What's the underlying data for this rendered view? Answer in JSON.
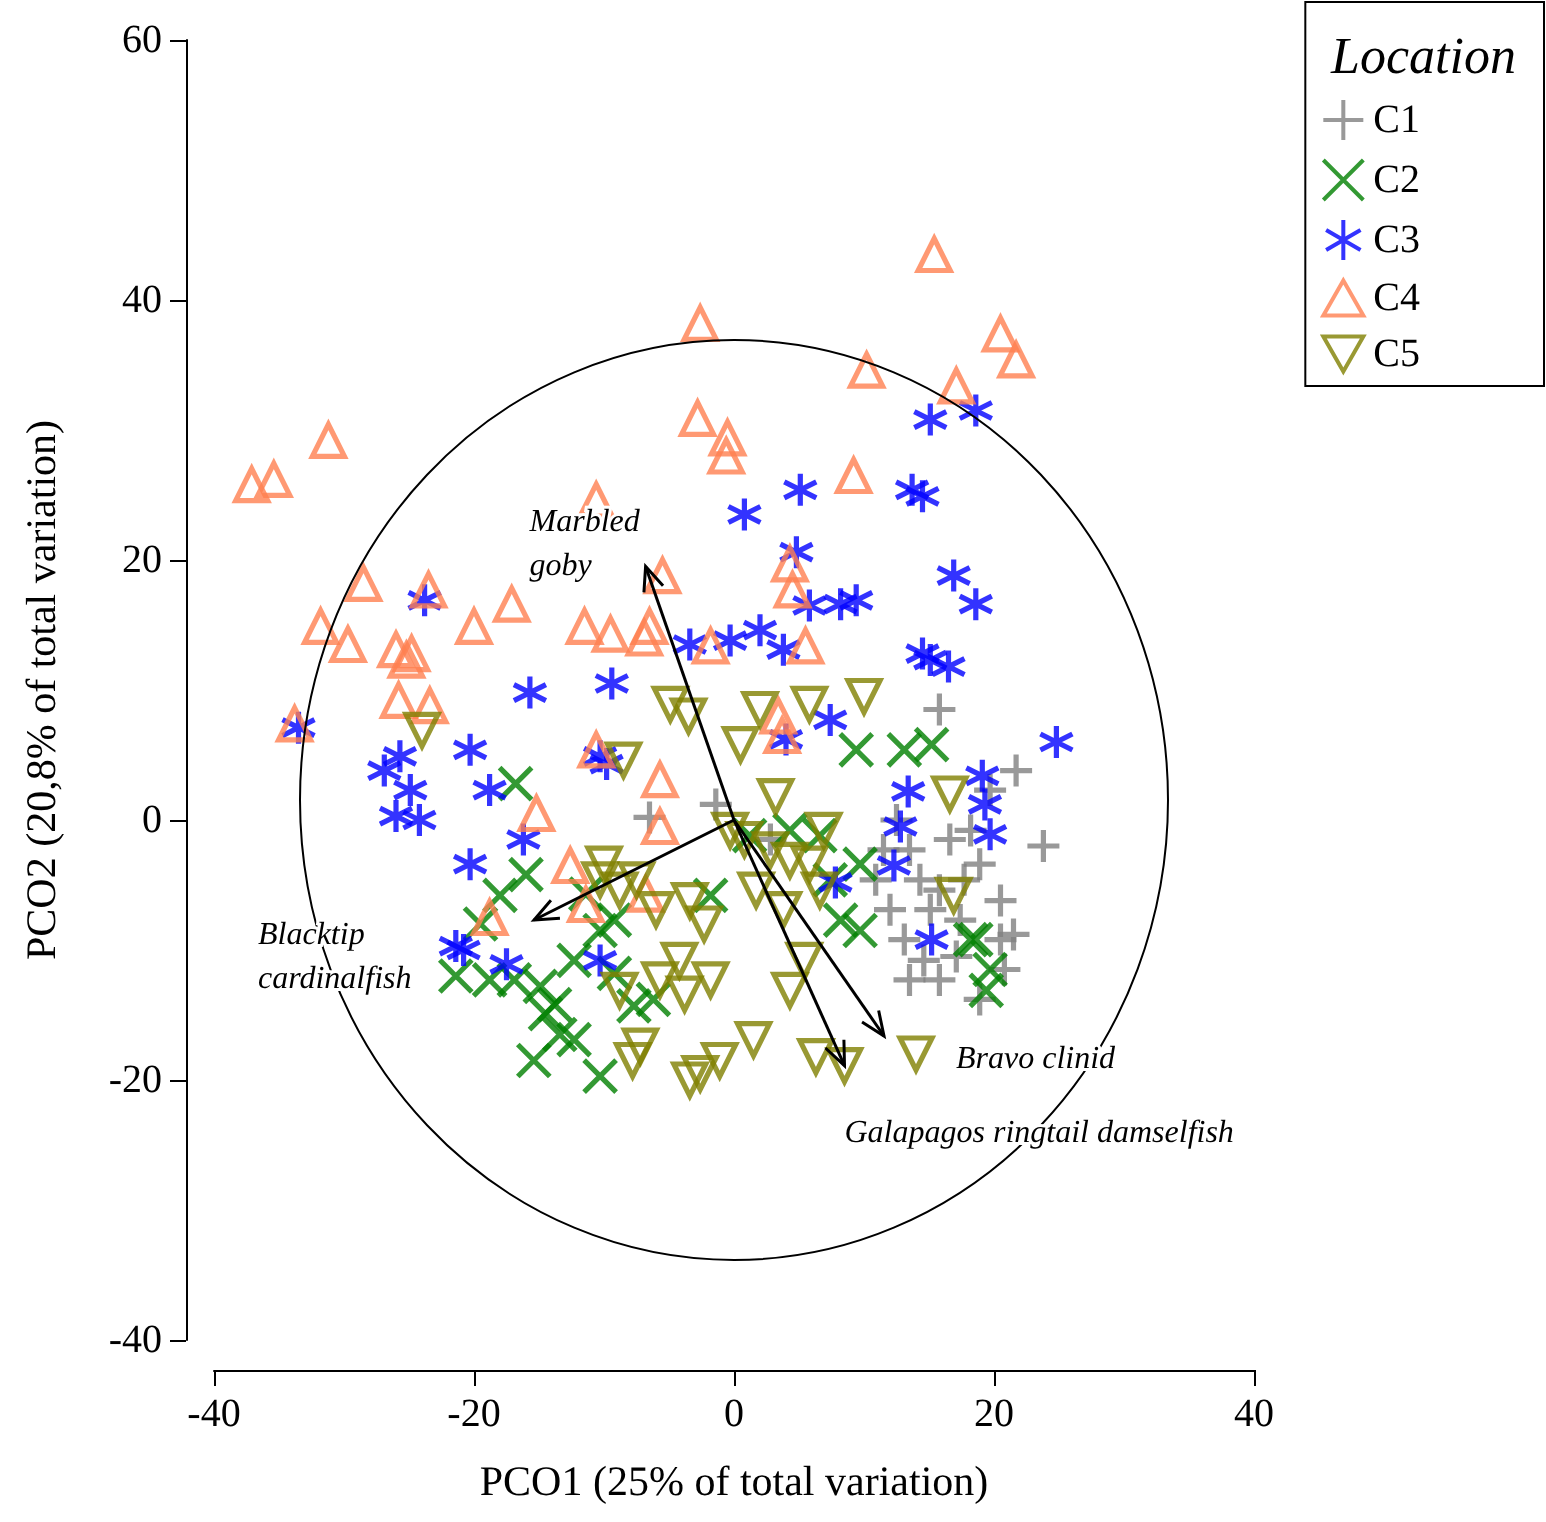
{
  "chart_data": {
    "type": "scatter",
    "xlabel": "PCO1 (25% of total variation)",
    "ylabel": "PCO2 (20,8% of total variation)",
    "legend_title": "Location",
    "legend": "top right",
    "grid": false,
    "xlim": [
      -40,
      40
    ],
    "xticks": [
      -40,
      -20,
      0,
      20,
      40
    ],
    "ylim": [
      -40,
      60
    ],
    "yticks": [
      -40,
      -20,
      0,
      20,
      40,
      60
    ],
    "series": [
      {
        "name": "C1",
        "color": "#808080",
        "marker": "plus",
        "x": [
          -1.4,
          -6.5,
          15.8,
          21.7,
          23.8,
          12.5,
          13.5,
          14.3,
          15.8,
          17.7,
          18.9,
          20.5,
          21.5,
          20.8,
          18.9,
          15.8,
          14.6,
          13.1,
          12,
          10.9,
          11.5,
          16.6,
          18.2,
          15.1,
          17.4,
          20.5,
          17.1,
          2.8,
          13.5,
          19.7
        ],
        "values": [
          1.2,
          0.2,
          8.5,
          3.8,
          -2,
          0,
          -2.3,
          -4.6,
          -5.4,
          -4.6,
          -3.4,
          -6.2,
          -8.8,
          -11.5,
          -13.8,
          -12.3,
          -10.8,
          -9.2,
          -6.9,
          -4.6,
          -2.3,
          -1.5,
          -0.8,
          -6.9,
          -7.7,
          -9.2,
          -10.5,
          -1.5,
          -12.3,
          2.3
        ]
      },
      {
        "name": "C2",
        "color": "#008000",
        "marker": "cross",
        "x": [
          -16.8,
          -16,
          -18,
          -21.4,
          -18.8,
          -16.9,
          -14.9,
          -13.8,
          -13.4,
          -15.4,
          -12.3,
          -10.3,
          -9.2,
          -11.4,
          -12.3,
          -7.7,
          -14.5,
          -9.2,
          -6.2,
          -1.8,
          9.4,
          13.1,
          15.2,
          9.7,
          7.4,
          4.3,
          8.2,
          9.7,
          18.2,
          19.4,
          19.7,
          18.6,
          1.2,
          6.6,
          -10.3,
          -19.5
        ],
        "values": [
          2.8,
          -4.2,
          -5.8,
          -12,
          -12.3,
          -12.3,
          -12.8,
          -14.2,
          -16.5,
          -18.5,
          -16.9,
          -19.7,
          -7.7,
          -5.7,
          -10.8,
          -14.3,
          -14.9,
          -11.8,
          -13.8,
          -5.8,
          5.4,
          5.4,
          5.8,
          -3.4,
          -4.6,
          -0.8,
          -7.7,
          -8.5,
          -9.2,
          -13.1,
          -11.5,
          -9.2,
          -1.2,
          -1.2,
          -8.5,
          -8
        ]
      },
      {
        "name": "C3",
        "color": "#0000ff",
        "x": [
          -33.5,
          -26.9,
          -25.7,
          -24.9,
          -26,
          -24.2,
          -23.8,
          -20.3,
          -18.8,
          -20.3,
          -15.7,
          -10.3,
          -9.8,
          -9.4,
          -21.4,
          -20.8,
          -17.5,
          -16.2,
          -10.3,
          0.8,
          5.1,
          4.8,
          2,
          3.8,
          5.8,
          8.2,
          9.4,
          13.7,
          14.5,
          15.1,
          18.6,
          16.9,
          18.6,
          14.5,
          15.1,
          16.5,
          7.4,
          4,
          24.8,
          19.1,
          19.3,
          19.7,
          13.4,
          12.8,
          7.8,
          15.2,
          12.3,
          -0.3,
          -3.4
        ],
        "values": [
          7.1,
          3.8,
          4.9,
          2.3,
          0.3,
          0,
          16.9,
          5.4,
          2.3,
          -3.4,
          9.8,
          4.9,
          4.3,
          10.5,
          -9.7,
          -10,
          -11.1,
          -1.5,
          -10.8,
          23.5,
          25.4,
          20.6,
          14.6,
          13.1,
          16.5,
          16.6,
          16.9,
          25.4,
          24.9,
          30.8,
          31.5,
          18.8,
          16.6,
          12.8,
          12.3,
          11.8,
          7.7,
          6.2,
          6,
          3.4,
          1.2,
          -1.1,
          2.2,
          -0.5,
          -4.8,
          -9.2,
          -3.5,
          13.8,
          13.5
        ]
      },
      {
        "name": "C4",
        "color": "#ff7f50",
        "marker": "triangle",
        "x": [
          -37.1,
          -35.4,
          -31.2,
          -31.8,
          -29.7,
          -28.5,
          -26,
          -25.2,
          -24.8,
          -25.8,
          -23.5,
          -23.4,
          -20,
          -17.1,
          -10.6,
          -11.5,
          -9.5,
          -6.5,
          -6.9,
          -5.5,
          -2.6,
          -2.8,
          -0.5,
          -0.6,
          -1.8,
          4.3,
          4.5,
          5.5,
          3.4,
          3.7,
          9.2,
          10.2,
          15.4,
          17.1,
          20.5,
          21.7,
          -33.8,
          -18.8,
          -15.2,
          -12.6,
          -5.7,
          -5.7,
          -6.8,
          -11.4,
          -10.6
        ],
        "values": [
          25.8,
          26.2,
          29.2,
          14.9,
          13.5,
          18.2,
          13.1,
          12.3,
          12.8,
          9.2,
          17.7,
          8.8,
          14.9,
          16.6,
          24.6,
          14.9,
          14.3,
          14.9,
          14,
          18.8,
          38.2,
          30.9,
          29.4,
          28,
          13.4,
          19.7,
          17.7,
          13.4,
          8,
          6.5,
          26.5,
          34.6,
          43.5,
          33.4,
          37.4,
          35.4,
          7.4,
          -7.5,
          0.5,
          -3.5,
          3.1,
          -0.5,
          -5.7,
          -6.5,
          5.4
        ]
      },
      {
        "name": "C5",
        "color": "#808000",
        "marker": "triangle-down",
        "x": [
          -24,
          -4.9,
          -3.5,
          2,
          5.8,
          10,
          0.5,
          -8.5,
          16.6,
          3.2,
          -0.3,
          0.8,
          2.8,
          4.3,
          5.8,
          6.9,
          1.7,
          3.8,
          5.4,
          -10,
          -8.8,
          -7.5,
          -6,
          -3.4,
          -2.3,
          -4.2,
          -5.7,
          -3.8,
          -1.8,
          -8.8,
          -7.2,
          -7.8,
          -3.4,
          -2.6,
          -1.1,
          1.5,
          4.3,
          6.3,
          8.5,
          14,
          16.9,
          6.6,
          -10.3
        ],
        "values": [
          6.9,
          8.9,
          8,
          8.5,
          8.9,
          9.5,
          5.8,
          4.6,
          2,
          1.8,
          -0.8,
          -1.5,
          -2.3,
          -3.1,
          -3.4,
          -0.8,
          -5.4,
          -6.9,
          -10.8,
          -3.4,
          -5.4,
          -4.6,
          -6.9,
          -6.2,
          -8,
          -10.8,
          -12.3,
          -13.4,
          -12.3,
          -13.1,
          -17.4,
          -18.5,
          -20,
          -19.5,
          -18.5,
          -16.9,
          -13.1,
          -18.2,
          -18.9,
          -18,
          -5.8,
          -5.4,
          -4.6
        ]
      }
    ],
    "annotations": [
      {
        "text": "Marbled goby",
        "x": -6.8,
        "y": 19.5
      },
      "Blacktip cardinalfish",
      "Bravo clinid",
      {
        "text": "Galapagos ringtail damselfish",
        "x": 8.5,
        "y": -18.9
      }
    ]
  }
}
